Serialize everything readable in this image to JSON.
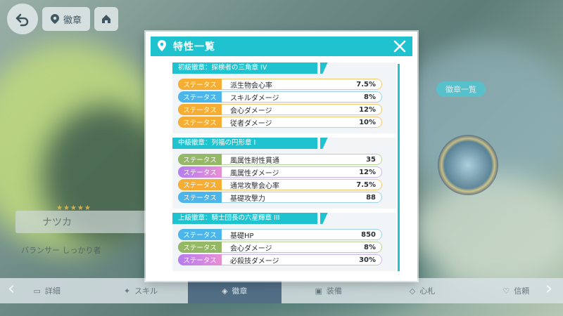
{
  "background": {
    "location_label": "徽章",
    "side_tag": "徽章一覧",
    "character_name": "ナツカ",
    "character_stars": "★★★★★",
    "role_text": "バランサー  しっかり者",
    "nav": [
      {
        "label": "詳細",
        "icon": "book-icon"
      },
      {
        "label": "スキル",
        "icon": "skill-icon"
      },
      {
        "label": "徽章",
        "icon": "badge-icon",
        "active": true
      },
      {
        "label": "装備",
        "icon": "equip-icon"
      },
      {
        "label": "心札",
        "icon": "card-icon"
      },
      {
        "label": "信頼",
        "icon": "trust-icon"
      }
    ]
  },
  "modal": {
    "title": "特性一覧",
    "groups": [
      {
        "title": "初級徽章：探検者の三角章 IV",
        "rows": [
          {
            "tag": "ステータス",
            "tag_color": "orange",
            "name": "派生物会心率",
            "value": "7.5%"
          },
          {
            "tag": "ステータス",
            "tag_color": "blue",
            "name": "スキルダメージ",
            "value": "8%"
          },
          {
            "tag": "ステータス",
            "tag_color": "orange",
            "name": "会心ダメージ",
            "value": "12%"
          },
          {
            "tag": "ステータス",
            "tag_color": "orange",
            "name": "従者ダメージ",
            "value": "10%"
          }
        ]
      },
      {
        "title": "中級徽章：列福の円形章 I",
        "rows": [
          {
            "tag": "ステータス",
            "tag_color": "green",
            "name": "風属性耐性貫通",
            "value": "35"
          },
          {
            "tag": "ステータス",
            "tag_color": "purple",
            "name": "風属性ダメージ",
            "value": "12%"
          },
          {
            "tag": "ステータス",
            "tag_color": "orange",
            "name": "通常攻撃会心率",
            "value": "7.5%"
          },
          {
            "tag": "ステータス",
            "tag_color": "blue",
            "name": "基礎攻撃力",
            "value": "88"
          }
        ]
      },
      {
        "title": "上級徽章：騎士団長の六星輝章 III",
        "rows": [
          {
            "tag": "ステータス",
            "tag_color": "blue",
            "name": "基礎HP",
            "value": "850"
          },
          {
            "tag": "ステータス",
            "tag_color": "green",
            "name": "会心ダメージ",
            "value": "8%"
          },
          {
            "tag": "ステータス",
            "tag_color": "purple",
            "name": "必殺技ダメージ",
            "value": "30%"
          }
        ]
      }
    ]
  },
  "colors": {
    "accent": "#1fc3cf",
    "tag_orange": "#f5ad33",
    "tag_blue": "#4cb6ea",
    "tag_green": "#94b865",
    "tag_purple": "#c284ec"
  }
}
